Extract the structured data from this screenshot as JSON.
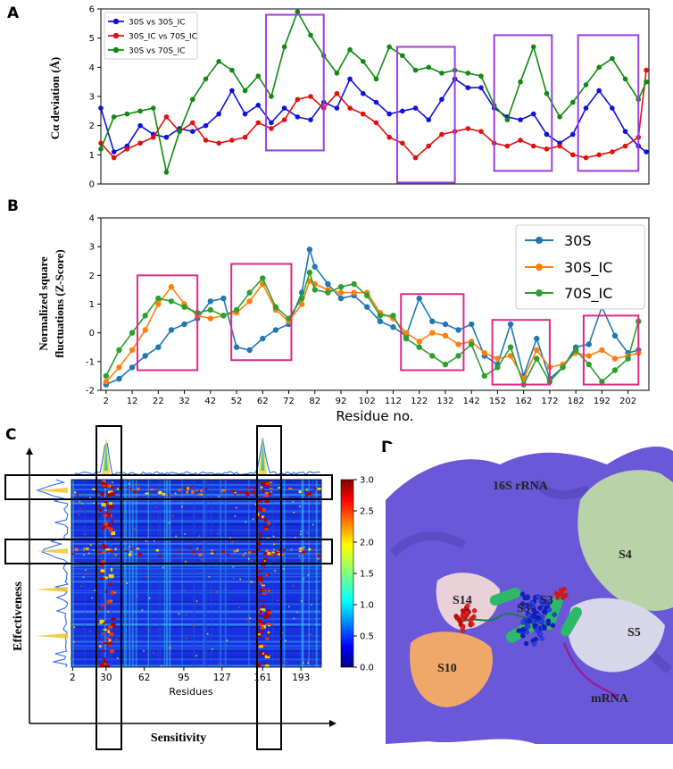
{
  "figure": {
    "panel_labels": [
      "A",
      "B",
      "C",
      "D"
    ]
  },
  "chart_data": [
    {
      "panel": "A",
      "type": "line",
      "ylabel": "Cα deviation (Å)",
      "ylim": [
        0,
        6
      ],
      "yticks": [
        0,
        1,
        2,
        3,
        4,
        5,
        6
      ],
      "xlim": [
        1,
        210
      ],
      "legend": {
        "placement": "top-left"
      },
      "series": [
        {
          "name": "30S vs 30S_IC",
          "color": "#1010d8",
          "x": [
            1,
            6,
            11,
            16,
            21,
            26,
            31,
            36,
            41,
            46,
            51,
            56,
            61,
            66,
            71,
            76,
            81,
            86,
            91,
            96,
            101,
            106,
            111,
            116,
            121,
            126,
            131,
            136,
            141,
            146,
            151,
            156,
            161,
            166,
            171,
            176,
            181,
            186,
            191,
            196,
            201,
            206,
            209
          ],
          "y": [
            2.6,
            1.1,
            1.3,
            2.0,
            1.7,
            1.6,
            1.9,
            1.8,
            2.0,
            2.4,
            3.2,
            2.4,
            2.7,
            2.1,
            2.6,
            2.3,
            2.2,
            2.8,
            2.6,
            3.6,
            3.1,
            2.8,
            2.4,
            2.5,
            2.6,
            2.2,
            2.9,
            3.6,
            3.3,
            3.3,
            2.6,
            2.3,
            2.2,
            2.4,
            1.7,
            1.4,
            1.7,
            2.6,
            3.2,
            2.6,
            1.8,
            1.3,
            1.1
          ]
        },
        {
          "name": "30S_IC vs 70S_IC",
          "color": "#e01010",
          "x": [
            1,
            6,
            11,
            16,
            21,
            26,
            31,
            36,
            41,
            46,
            51,
            56,
            61,
            66,
            71,
            76,
            81,
            86,
            91,
            96,
            101,
            106,
            111,
            116,
            121,
            126,
            131,
            136,
            141,
            146,
            151,
            156,
            161,
            166,
            171,
            176,
            181,
            186,
            191,
            196,
            201,
            206,
            209
          ],
          "y": [
            1.4,
            0.9,
            1.2,
            1.4,
            1.6,
            2.3,
            1.8,
            2.1,
            1.5,
            1.4,
            1.5,
            1.6,
            2.1,
            1.9,
            2.2,
            2.9,
            3.0,
            2.6,
            3.1,
            2.6,
            2.4,
            2.1,
            1.6,
            1.4,
            0.9,
            1.3,
            1.7,
            1.8,
            1.9,
            1.8,
            1.4,
            1.3,
            1.5,
            1.3,
            1.2,
            1.3,
            1.0,
            0.9,
            1.0,
            1.1,
            1.3,
            1.6,
            3.9
          ]
        },
        {
          "name": "30S vs 70S_IC",
          "color": "#0e8a0e",
          "x": [
            1,
            6,
            11,
            16,
            21,
            26,
            31,
            36,
            41,
            46,
            51,
            56,
            61,
            66,
            71,
            76,
            81,
            86,
            91,
            96,
            101,
            106,
            111,
            116,
            121,
            126,
            131,
            136,
            141,
            146,
            151,
            156,
            161,
            166,
            171,
            176,
            181,
            186,
            191,
            196,
            201,
            206,
            209
          ],
          "y": [
            1.2,
            2.3,
            2.4,
            2.5,
            2.6,
            0.4,
            1.8,
            2.9,
            3.6,
            4.2,
            3.9,
            3.2,
            3.7,
            3.0,
            4.7,
            5.9,
            5.1,
            4.4,
            3.8,
            4.6,
            4.2,
            3.6,
            4.7,
            4.4,
            3.9,
            4.0,
            3.8,
            3.9,
            3.8,
            3.7,
            2.7,
            2.2,
            3.5,
            4.7,
            3.1,
            2.3,
            2.8,
            3.4,
            4.0,
            4.3,
            3.6,
            2.9,
            3.5
          ]
        }
      ],
      "highlight_boxes": [
        {
          "x": [
            64,
            86
          ],
          "y": [
            1.15,
            5.8
          ]
        },
        {
          "x": [
            114,
            136
          ],
          "y": [
            0.05,
            4.7
          ]
        },
        {
          "x": [
            151,
            173
          ],
          "y": [
            0.45,
            5.1
          ]
        },
        {
          "x": [
            183,
            206
          ],
          "y": [
            0.45,
            5.1
          ]
        }
      ]
    },
    {
      "panel": "B",
      "type": "line",
      "xlabel": "Residue no.",
      "ylabel": "Normalized square fluctuations (Z-Score)",
      "ylabel_lines": [
        "Normalized square",
        "fluctuations (Z-Score)"
      ],
      "xlim": [
        0,
        210
      ],
      "ylim": [
        -2,
        4
      ],
      "xticks": [
        2,
        12,
        22,
        32,
        42,
        52,
        62,
        72,
        82,
        92,
        102,
        112,
        122,
        132,
        142,
        152,
        162,
        172,
        182,
        192,
        202
      ],
      "xtick_labels": [
        "2",
        "12",
        "22",
        "32",
        "42",
        "52",
        "62",
        "72",
        "82",
        "92",
        "102",
        "112",
        "122",
        "132",
        "142",
        "152",
        "162",
        "172",
        "182",
        "192",
        "202"
      ],
      "yticks": [
        -2,
        -1,
        0,
        1,
        2,
        3,
        4
      ],
      "legend": {
        "placement": "top-right"
      },
      "series": [
        {
          "name": "30S",
          "color": "#1f77b4",
          "x": [
            2,
            7,
            12,
            17,
            22,
            27,
            32,
            37,
            42,
            47,
            52,
            57,
            62,
            67,
            72,
            77,
            80,
            82,
            87,
            92,
            97,
            102,
            107,
            112,
            117,
            122,
            127,
            132,
            137,
            142,
            147,
            152,
            157,
            162,
            167,
            172,
            177,
            182,
            187,
            192,
            197,
            202,
            206
          ],
          "y": [
            -1.8,
            -1.6,
            -1.2,
            -0.8,
            -0.5,
            0.1,
            0.3,
            0.5,
            1.1,
            1.2,
            -0.5,
            -0.6,
            -0.2,
            0.1,
            0.3,
            1.4,
            2.9,
            2.3,
            1.7,
            1.2,
            1.3,
            0.9,
            0.4,
            0.2,
            -0.1,
            1.2,
            0.4,
            0.3,
            0.1,
            0.3,
            -0.8,
            -1.1,
            0.3,
            -1.5,
            -0.2,
            -1.6,
            -1.2,
            -0.5,
            -0.4,
            0.9,
            -0.1,
            -0.7,
            -0.6
          ]
        },
        {
          "name": "30S_IC",
          "color": "#ff7f0e",
          "x": [
            2,
            7,
            12,
            17,
            22,
            27,
            32,
            37,
            42,
            47,
            52,
            57,
            62,
            67,
            72,
            77,
            80,
            82,
            87,
            92,
            97,
            102,
            107,
            112,
            117,
            122,
            127,
            132,
            137,
            142,
            147,
            152,
            157,
            162,
            167,
            172,
            177,
            182,
            187,
            192,
            197,
            202,
            206
          ],
          "y": [
            -1.7,
            -1.2,
            -0.6,
            0.1,
            1.0,
            1.6,
            1.0,
            0.6,
            0.5,
            0.6,
            0.7,
            1.1,
            1.7,
            0.8,
            0.4,
            1.0,
            1.8,
            1.7,
            1.5,
            1.4,
            1.4,
            1.4,
            0.7,
            0.5,
            0.0,
            -0.3,
            0.0,
            -0.1,
            -0.4,
            -0.3,
            -0.7,
            -0.9,
            -0.8,
            -1.6,
            -0.6,
            -1.2,
            -1.1,
            -0.7,
            -0.8,
            -0.6,
            -0.9,
            -0.8,
            -0.7
          ]
        },
        {
          "name": "70S_IC",
          "color": "#2ca02c",
          "x": [
            2,
            7,
            12,
            17,
            22,
            27,
            32,
            37,
            42,
            47,
            52,
            57,
            62,
            67,
            72,
            77,
            80,
            82,
            87,
            92,
            97,
            102,
            107,
            112,
            117,
            122,
            127,
            132,
            137,
            142,
            147,
            152,
            157,
            162,
            167,
            172,
            177,
            182,
            187,
            192,
            197,
            202,
            206
          ],
          "y": [
            -1.5,
            -0.6,
            0.0,
            0.6,
            1.2,
            1.1,
            0.9,
            0.7,
            0.8,
            0.6,
            0.8,
            1.4,
            1.9,
            0.9,
            0.5,
            1.2,
            2.1,
            1.5,
            1.4,
            1.6,
            1.7,
            1.3,
            0.6,
            0.6,
            -0.2,
            -0.5,
            -0.8,
            -1.1,
            -0.8,
            -0.4,
            -1.5,
            -1.2,
            -0.5,
            -1.8,
            -0.9,
            -1.7,
            -1.2,
            -0.6,
            -1.1,
            -1.7,
            -1.3,
            -0.9,
            0.4
          ]
        }
      ],
      "highlight_boxes": [
        {
          "x": [
            14,
            37
          ],
          "y": [
            -1.3,
            2.0
          ]
        },
        {
          "x": [
            50,
            73
          ],
          "y": [
            -0.95,
            2.4
          ]
        },
        {
          "x": [
            115,
            139
          ],
          "y": [
            -1.3,
            1.35
          ]
        },
        {
          "x": [
            150,
            172
          ],
          "y": [
            -1.8,
            0.45
          ]
        },
        {
          "x": [
            185,
            206
          ],
          "y": [
            -1.8,
            0.6
          ]
        }
      ]
    },
    {
      "panel": "C",
      "type": "heatmap",
      "xlabel": "Residues",
      "ylabel": "Effectiveness",
      "xaxis_label": "Sensitivity",
      "xticks": [
        2,
        30,
        62,
        95,
        127,
        161,
        193
      ],
      "xtick_labels": [
        "2",
        "30",
        "62",
        "95",
        "127",
        "161",
        "193"
      ],
      "colorbar_ticks": [
        0.0,
        0.5,
        1.0,
        1.5,
        2.0,
        2.5,
        3.0
      ],
      "colorbar_labels": [
        "0.0",
        "0.5",
        "1.0",
        "1.5",
        "2.0",
        "2.5",
        "3.0"
      ],
      "hot_columns": [
        30,
        161
      ],
      "hot_rows": [
        8,
        44
      ]
    }
  ],
  "panel_d": {
    "labels": {
      "rrna": "16S rRNA",
      "s4": "S4",
      "s5": "S5",
      "s14": "S14",
      "s10": "S10",
      "s3a": "S3",
      "s3b": "S3",
      "mrna": "mRNA"
    },
    "colors": {
      "rrna": "#6a58d8",
      "s4": "#b9d3a8",
      "s5": "#d8d6ea",
      "s14": "#ead1d8",
      "s10": "#f0a868"
    }
  }
}
